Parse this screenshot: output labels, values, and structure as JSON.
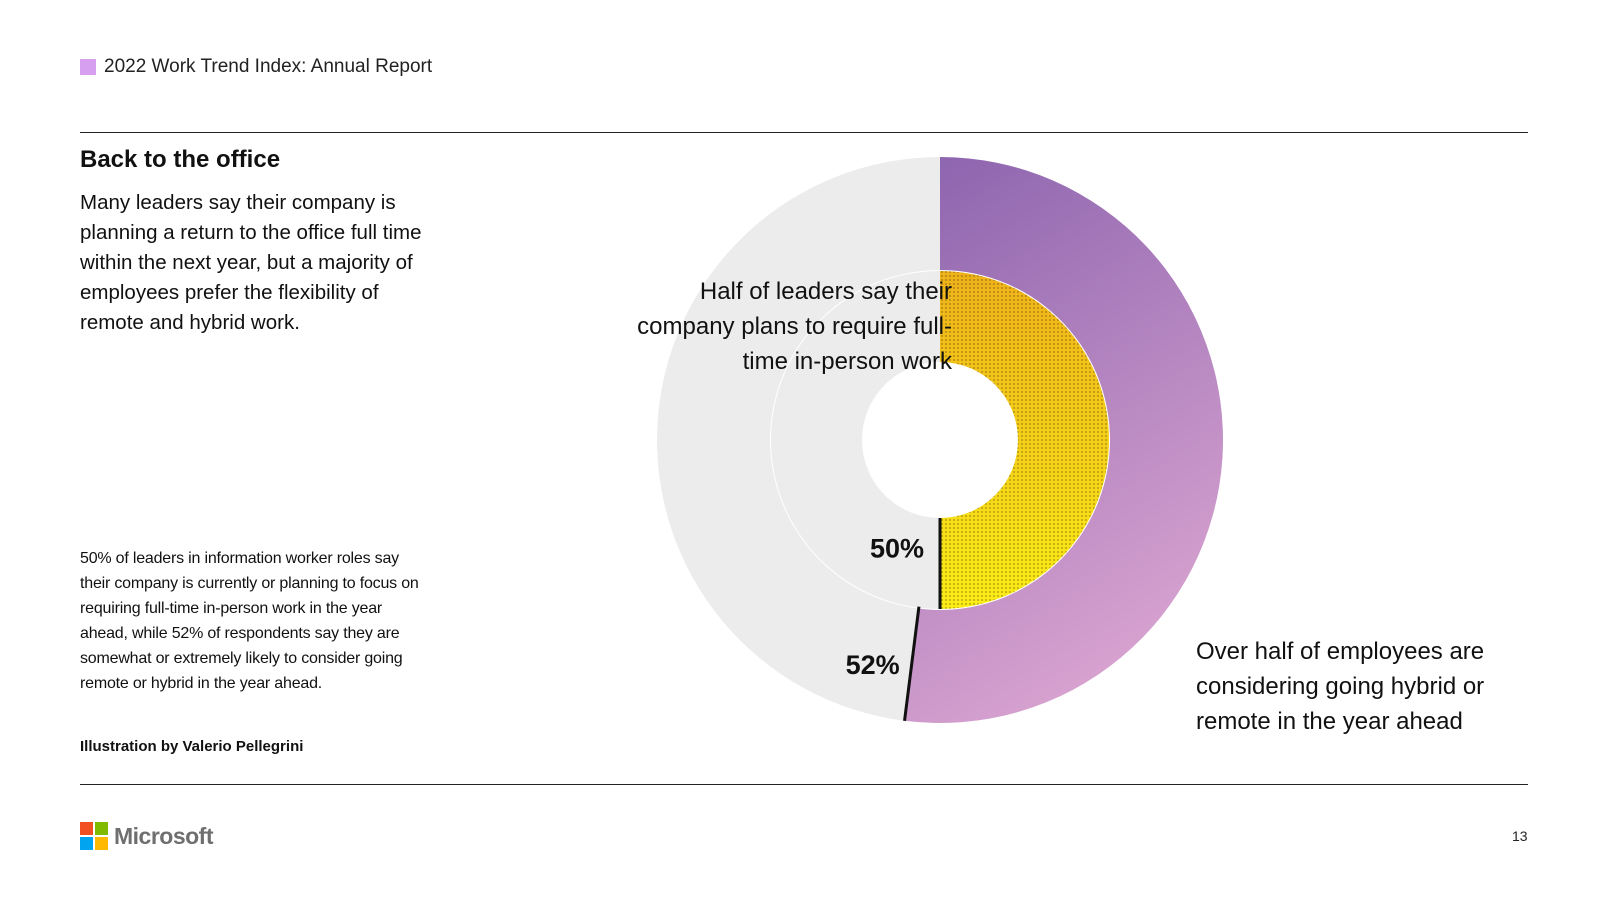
{
  "header": {
    "title": "2022 Work Trend Index: Annual Report",
    "swatch_color": "#d79ff0"
  },
  "section": {
    "title": "Back to the office",
    "intro": "Many leaders say their company is planning a return to the office full time within the next year, but a majority of employees prefer the flexibility of remote and hybrid work."
  },
  "footnote": "50% of leaders in information worker roles say their company is currently or planning to focus on requiring full-time in-person work in the year ahead, while 52% of respondents say they are somewhat or extremely likely to consider going remote or hybrid in the year ahead.",
  "credit": "Illustration by Valerio Pellegrini",
  "chart_data": {
    "type": "pie",
    "variant": "nested-donut",
    "series": [
      {
        "name": "Employees considering hybrid or remote",
        "ring": "outer",
        "value": 52,
        "label": "52%",
        "callout": "Over half of employees are considering going hybrid or remote in the year ahead",
        "color_start": "#8b63ae",
        "color_end": "#d6a1cf",
        "remainder_color": "#ececec"
      },
      {
        "name": "Leaders requiring full-time in-person work",
        "ring": "inner",
        "value": 50,
        "label": "50%",
        "callout": "Half of leaders say their company plans to require full-time in-person work",
        "color_start": "#efb21a",
        "color_end": "#fbec16",
        "remainder_color": "#ececec"
      }
    ]
  },
  "footer": {
    "logo_text": "Microsoft",
    "logo_colors": [
      "#f25022",
      "#7fba00",
      "#00a4ef",
      "#ffb900"
    ],
    "page_number": "13"
  }
}
